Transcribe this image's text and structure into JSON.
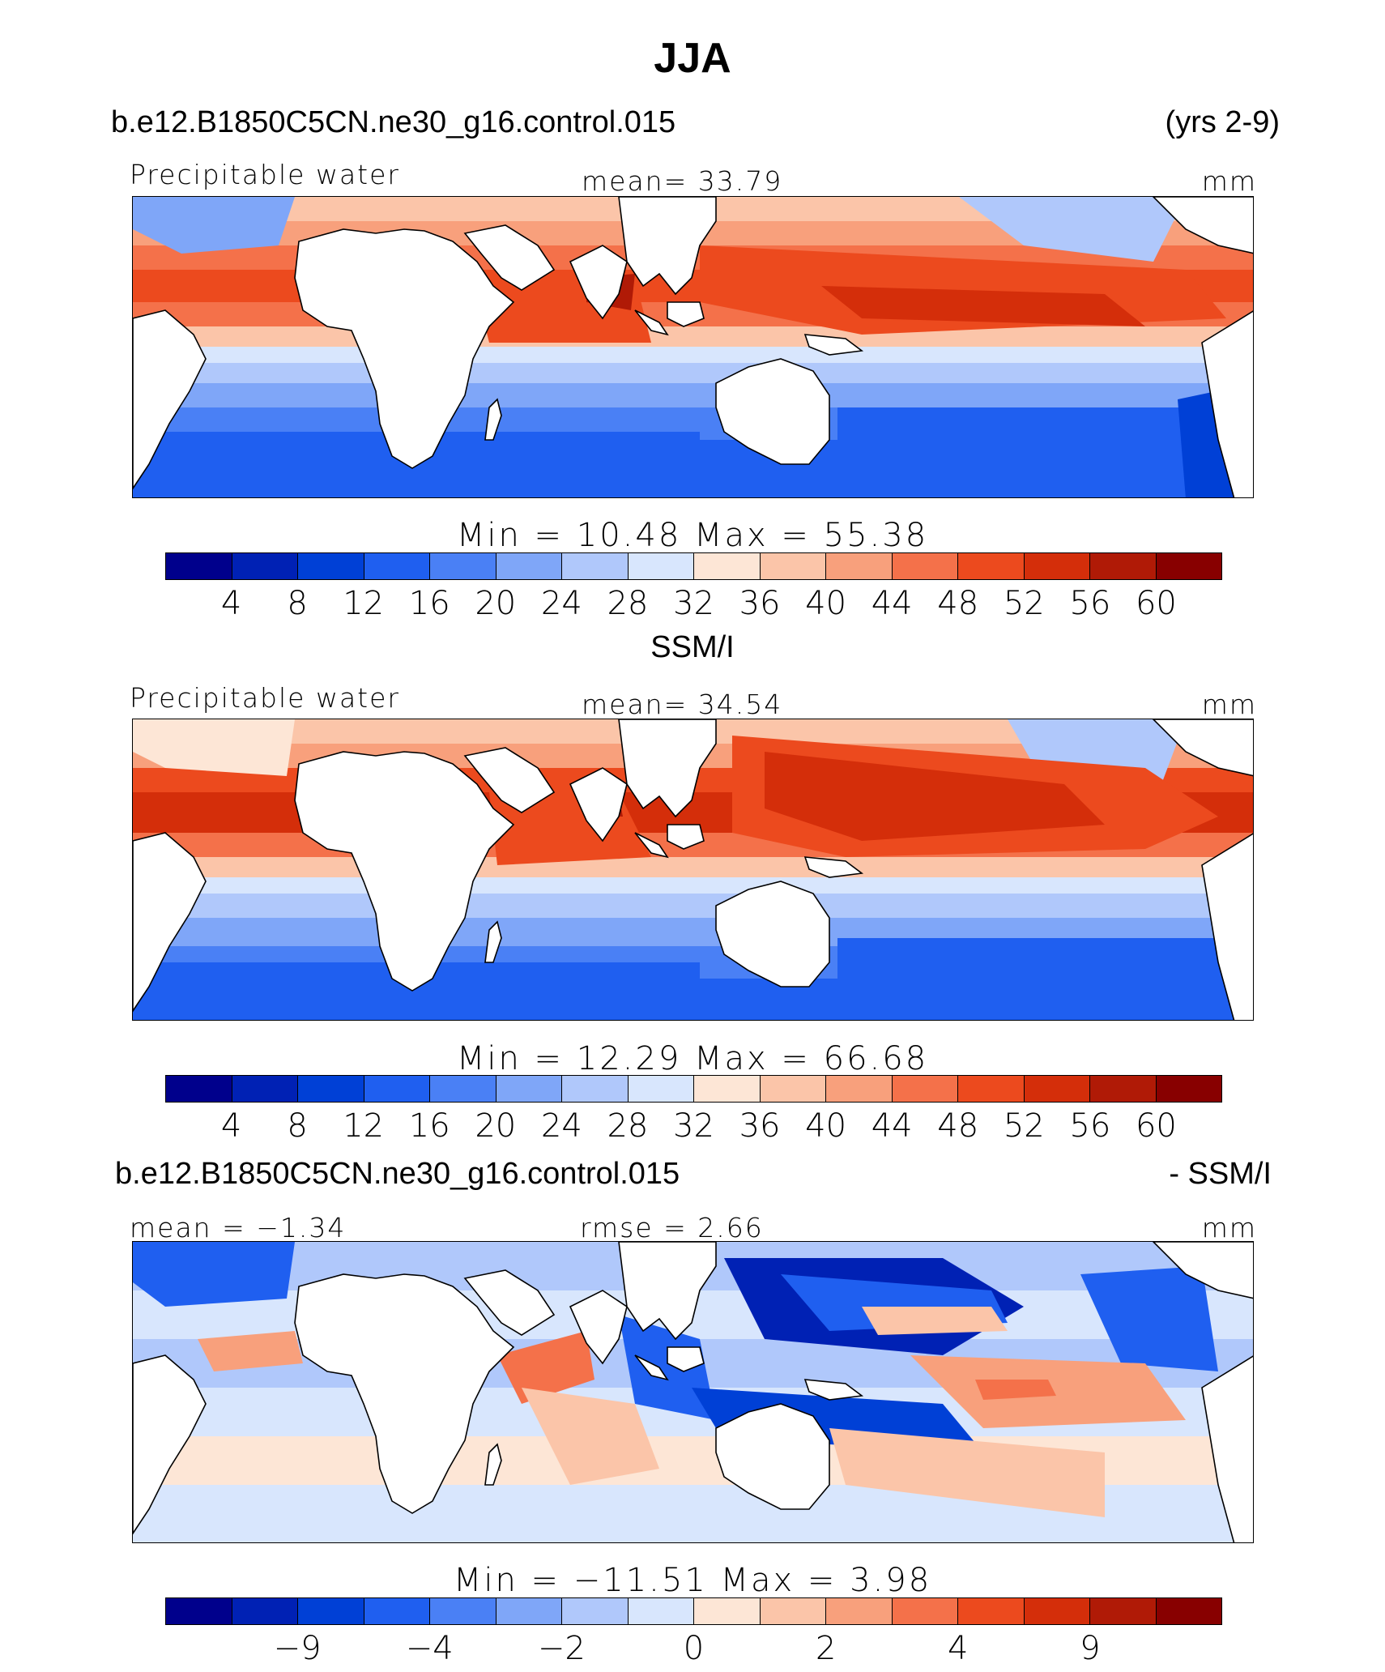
{
  "title": "JJA",
  "panels": [
    {
      "header_left": "b.e12.B1850C5CN.ne30_g16.control.015",
      "header_right": "(yrs 2-9)",
      "label_left": "Precipitable water",
      "label_center": "mean=  33.79",
      "label_right": "mm",
      "minmax": "Min =  10.48 Max =  55.38",
      "colorbar_ticks": [
        "4",
        "8",
        "12",
        "16",
        "20",
        "24",
        "28",
        "32",
        "36",
        "40",
        "44",
        "48",
        "52",
        "56",
        "60"
      ],
      "style": "model"
    },
    {
      "header_center": "SSM/I",
      "label_left": "Precipitable water",
      "label_center": "mean=  34.54",
      "label_right": "mm",
      "minmax": "Min =  12.29 Max =  66.68",
      "colorbar_ticks": [
        "4",
        "8",
        "12",
        "16",
        "20",
        "24",
        "28",
        "32",
        "36",
        "40",
        "44",
        "48",
        "52",
        "56",
        "60"
      ],
      "style": "obs"
    },
    {
      "header_left": "b.e12.B1850C5CN.ne30_g16.control.015",
      "header_right": "- SSM/I",
      "label_left": "mean =  −1.34",
      "label_center": "rmse =   2.66",
      "label_right": "mm",
      "minmax": "Min = −11.51 Max =   3.98",
      "colorbar_ticks": [
        "",
        "−9",
        "",
        "−4",
        "",
        "−2",
        "",
        "0",
        "",
        "2",
        "",
        "4",
        "",
        "9",
        ""
      ],
      "style": "diff"
    }
  ],
  "colors": {
    "palette": [
      "#00008c",
      "#0021b4",
      "#0040d6",
      "#1f5ff0",
      "#4a80f5",
      "#7fa6f8",
      "#b0c8fb",
      "#d8e6fd",
      "#fde6d6",
      "#fbc5a9",
      "#f8a07c",
      "#f4714a",
      "#ec4a1e",
      "#d42e0a",
      "#b01a06",
      "#880000"
    ],
    "land": "#ffffff",
    "coast": "#000000"
  },
  "chart_data": [
    {
      "type": "heatmap",
      "title": "Precipitable water",
      "subtitle": "b.e12.B1850C5CN.ne30_g16.control.015 (yrs 2-9)",
      "units": "mm",
      "mean": 33.79,
      "min": 10.48,
      "max": 55.38,
      "levels": [
        4,
        8,
        12,
        16,
        20,
        24,
        28,
        32,
        36,
        40,
        44,
        48,
        52,
        56,
        60
      ]
    },
    {
      "type": "heatmap",
      "title": "Precipitable water",
      "subtitle": "SSM/I",
      "units": "mm",
      "mean": 34.54,
      "min": 12.29,
      "max": 66.68,
      "levels": [
        4,
        8,
        12,
        16,
        20,
        24,
        28,
        32,
        36,
        40,
        44,
        48,
        52,
        56,
        60
      ]
    },
    {
      "type": "heatmap",
      "title": "b.e12.B1850C5CN.ne30_g16.control.015 - SSM/I",
      "units": "mm",
      "mean": -1.34,
      "rmse": 2.66,
      "min": -11.51,
      "max": 3.98,
      "levels": [
        -9,
        -4,
        -2,
        0,
        2,
        4,
        9
      ]
    }
  ]
}
